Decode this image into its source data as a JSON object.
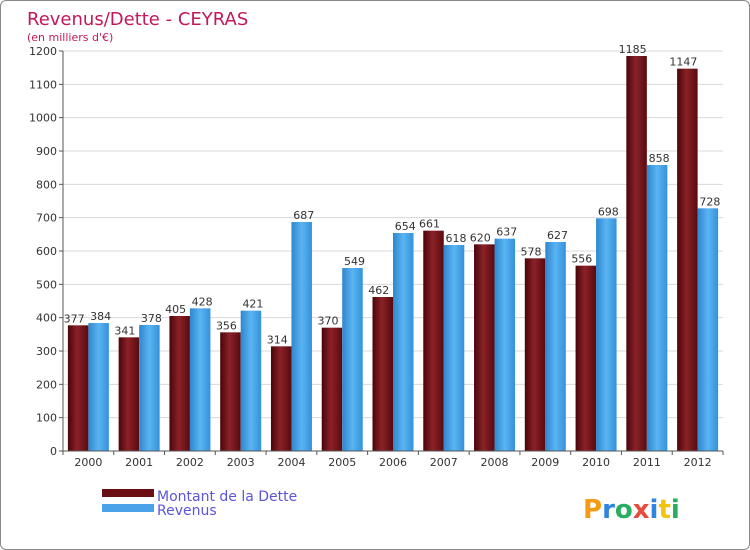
{
  "chart_data": {
    "type": "bar",
    "title": "Revenus/Dette - CEYRAS",
    "subtitle": "(en milliers d'€)",
    "categories": [
      "2000",
      "2001",
      "2002",
      "2003",
      "2004",
      "2005",
      "2006",
      "2007",
      "2008",
      "2009",
      "2010",
      "2011",
      "2012"
    ],
    "series": [
      {
        "name": "Montant de la Dette",
        "values": [
          377,
          341,
          405,
          356,
          314,
          370,
          462,
          661,
          620,
          578,
          556,
          1185,
          1147
        ],
        "color": "#6b0f14"
      },
      {
        "name": "Revenus",
        "values": [
          384,
          378,
          428,
          421,
          687,
          549,
          654,
          618,
          637,
          627,
          698,
          858,
          728
        ],
        "color": "#4aa3e8"
      }
    ],
    "ylim": [
      0,
      1200
    ],
    "yticks": [
      0,
      100,
      200,
      300,
      400,
      500,
      600,
      700,
      800,
      900,
      1000,
      1100,
      1200
    ],
    "grid": true,
    "legend_position": "bottom-left",
    "title_color": "#c2185b",
    "logo_text": "Proxiti"
  }
}
